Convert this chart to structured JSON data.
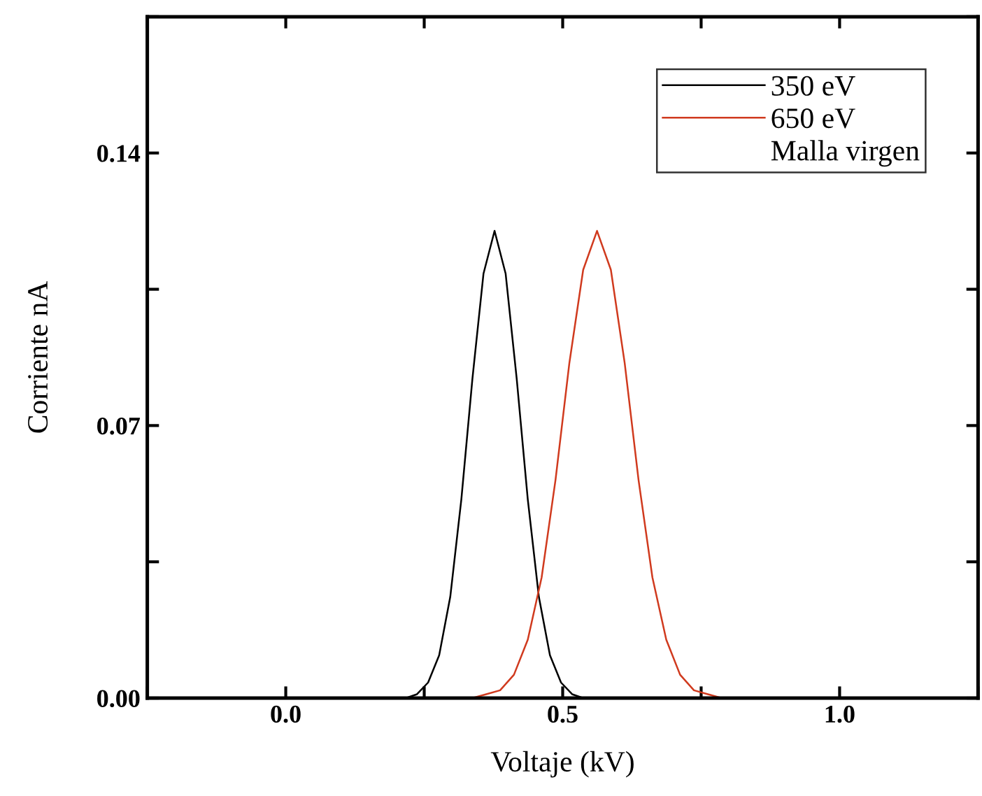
{
  "chart_data": {
    "type": "line",
    "xlabel": "Voltaje (kV)",
    "ylabel": "Corriente nA",
    "legend_title": "Malla virgen",
    "legend": "top right",
    "grid": false,
    "marker": "none",
    "line_style": "solid",
    "xlim": [
      -0.25,
      1.25
    ],
    "ylim": [
      0,
      0.175
    ],
    "xticks": [
      {
        "value": -0.25,
        "label": null
      },
      {
        "value": 0,
        "label": "0.0"
      },
      {
        "value": 0.25,
        "label": null
      },
      0.5,
      {
        "value": 0.75,
        "label": null
      },
      {
        "value": 1,
        "label": "1.0"
      },
      {
        "value": 1.25,
        "label": null
      }
    ],
    "yticks": [
      {
        "value": 0,
        "label": "0.00"
      },
      {
        "value": 0.035,
        "label": null
      },
      0.07,
      {
        "value": 0.105,
        "label": null
      },
      0.14,
      {
        "value": 0.175,
        "label": null
      }
    ],
    "series": [
      {
        "name": "350 eV",
        "color": "#000000",
        "x": [
          0.0,
          0.217,
          0.237,
          0.257,
          0.277,
          0.297,
          0.317,
          0.337,
          0.357,
          0.377,
          0.397,
          0.417,
          0.437,
          0.457,
          0.477,
          0.497,
          0.517,
          0.537,
          1.0
        ],
        "values": [
          0,
          0,
          0.001,
          0.004,
          0.011,
          0.026,
          0.051,
          0.082,
          0.109,
          0.12,
          0.109,
          0.082,
          0.051,
          0.026,
          0.011,
          0.004,
          0.001,
          0,
          0
        ]
      },
      {
        "name": "650 eV",
        "color": "#d03a1e",
        "x": [
          0.0,
          0.337,
          0.362,
          0.387,
          0.412,
          0.437,
          0.462,
          0.487,
          0.512,
          0.537,
          0.562,
          0.587,
          0.612,
          0.637,
          0.662,
          0.687,
          0.712,
          0.737,
          0.762,
          0.787,
          1.0
        ],
        "values": [
          0,
          0,
          0.001,
          0.002,
          0.006,
          0.015,
          0.031,
          0.056,
          0.086,
          0.11,
          0.12,
          0.11,
          0.086,
          0.056,
          0.031,
          0.015,
          0.006,
          0.002,
          0.001,
          0,
          0
        ]
      }
    ]
  }
}
